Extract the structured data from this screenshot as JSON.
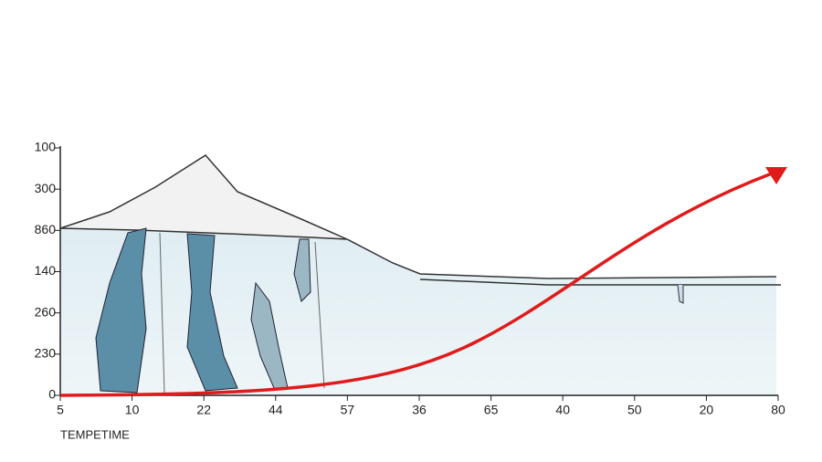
{
  "chart_data": {
    "type": "line",
    "categories": [
      "5",
      "10",
      "22",
      "44",
      "57",
      "36",
      "65",
      "40",
      "50",
      "20",
      "80"
    ],
    "y_labels": [
      "100",
      "300",
      "860",
      "140",
      "260",
      "230",
      "0"
    ],
    "x_label": "TEMPETIME",
    "color": "#e01b1b"
  }
}
